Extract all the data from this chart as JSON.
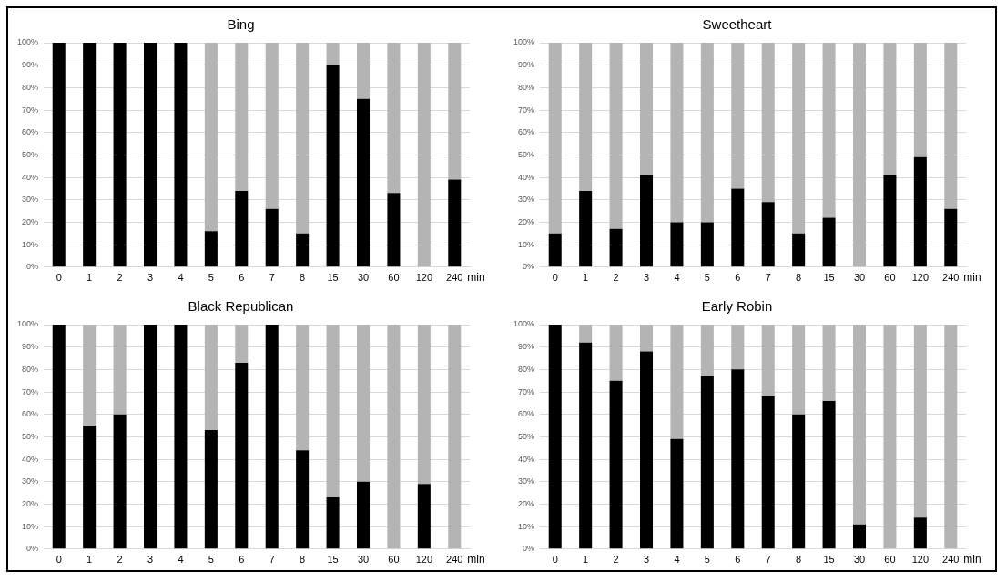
{
  "chart_data": [
    {
      "type": "bar",
      "title": "Bing",
      "xlabel": "min",
      "stacked": true,
      "grid": "y",
      "legend": false,
      "categories": [
        "0",
        "1",
        "2",
        "3",
        "4",
        "5",
        "6",
        "7",
        "8",
        "15",
        "30",
        "60",
        "120",
        "240"
      ],
      "ylim": [
        0,
        100
      ],
      "yticks": [
        {
          "value": 0,
          "label": "0%"
        },
        {
          "value": 10,
          "label": "10%"
        },
        {
          "value": 20,
          "label": "20%"
        },
        {
          "value": 30,
          "label": "30%"
        },
        {
          "value": 40,
          "label": "40%"
        },
        {
          "value": 50,
          "label": "50%"
        },
        {
          "value": 60,
          "label": "60%"
        },
        {
          "value": 70,
          "label": "70%"
        },
        {
          "value": 80,
          "label": "80%"
        },
        {
          "value": 90,
          "label": "90%"
        },
        {
          "value": 100,
          "label": "100%"
        }
      ],
      "series": [
        {
          "color": "#000000",
          "values": [
            100,
            100,
            100,
            100,
            100,
            16,
            34,
            26,
            15,
            90,
            75,
            33,
            0,
            39
          ]
        },
        {
          "color": "#b4b4b4",
          "values": [
            0,
            0,
            0,
            0,
            0,
            84,
            66,
            74,
            85,
            10,
            25,
            67,
            100,
            61
          ]
        }
      ]
    },
    {
      "type": "bar",
      "title": "Sweetheart",
      "xlabel": "min",
      "stacked": true,
      "grid": "y",
      "legend": false,
      "categories": [
        "0",
        "1",
        "2",
        "3",
        "4",
        "5",
        "6",
        "7",
        "8",
        "15",
        "30",
        "60",
        "120",
        "240"
      ],
      "ylim": [
        0,
        100
      ],
      "yticks": [
        {
          "value": 0,
          "label": "0%"
        },
        {
          "value": 10,
          "label": "10%"
        },
        {
          "value": 20,
          "label": "20%"
        },
        {
          "value": 30,
          "label": "30%"
        },
        {
          "value": 40,
          "label": "40%"
        },
        {
          "value": 50,
          "label": "50%"
        },
        {
          "value": 60,
          "label": "60%"
        },
        {
          "value": 70,
          "label": "70%"
        },
        {
          "value": 80,
          "label": "80%"
        },
        {
          "value": 90,
          "label": "90%"
        },
        {
          "value": 100,
          "label": "100%"
        }
      ],
      "series": [
        {
          "color": "#000000",
          "values": [
            15,
            34,
            17,
            41,
            20,
            20,
            35,
            29,
            15,
            22,
            0,
            41,
            49,
            26
          ]
        },
        {
          "color": "#b4b4b4",
          "values": [
            85,
            66,
            83,
            59,
            80,
            80,
            65,
            71,
            85,
            78,
            100,
            59,
            51,
            74
          ]
        }
      ]
    },
    {
      "type": "bar",
      "title": "Black Republican",
      "xlabel": "min",
      "stacked": true,
      "grid": "y",
      "legend": false,
      "categories": [
        "0",
        "1",
        "2",
        "3",
        "4",
        "5",
        "6",
        "7",
        "8",
        "15",
        "30",
        "60",
        "120",
        "240"
      ],
      "ylim": [
        0,
        100
      ],
      "yticks": [
        {
          "value": 0,
          "label": "0%"
        },
        {
          "value": 10,
          "label": "10%"
        },
        {
          "value": 20,
          "label": "20%"
        },
        {
          "value": 30,
          "label": "30%"
        },
        {
          "value": 40,
          "label": "40%"
        },
        {
          "value": 50,
          "label": "50%"
        },
        {
          "value": 60,
          "label": "60%"
        },
        {
          "value": 70,
          "label": "70%"
        },
        {
          "value": 80,
          "label": "80%"
        },
        {
          "value": 90,
          "label": "90%"
        },
        {
          "value": 100,
          "label": "100%"
        }
      ],
      "series": [
        {
          "color": "#000000",
          "values": [
            100,
            55,
            60,
            100,
            100,
            53,
            83,
            100,
            44,
            23,
            30,
            0,
            29,
            0
          ]
        },
        {
          "color": "#b4b4b4",
          "values": [
            0,
            45,
            40,
            0,
            0,
            47,
            17,
            0,
            56,
            77,
            70,
            100,
            71,
            100
          ]
        }
      ]
    },
    {
      "type": "bar",
      "title": "Early Robin",
      "xlabel": "min",
      "stacked": true,
      "grid": "y",
      "legend": false,
      "categories": [
        "0",
        "1",
        "2",
        "3",
        "4",
        "5",
        "6",
        "7",
        "8",
        "15",
        "30",
        "60",
        "120",
        "240"
      ],
      "ylim": [
        0,
        100
      ],
      "yticks": [
        {
          "value": 0,
          "label": "0%"
        },
        {
          "value": 10,
          "label": "10%"
        },
        {
          "value": 20,
          "label": "20%"
        },
        {
          "value": 30,
          "label": "30%"
        },
        {
          "value": 40,
          "label": "40%"
        },
        {
          "value": 50,
          "label": "50%"
        },
        {
          "value": 60,
          "label": "60%"
        },
        {
          "value": 70,
          "label": "70%"
        },
        {
          "value": 80,
          "label": "80%"
        },
        {
          "value": 90,
          "label": "90%"
        },
        {
          "value": 100,
          "label": "100%"
        }
      ],
      "series": [
        {
          "color": "#000000",
          "values": [
            100,
            92,
            75,
            88,
            49,
            77,
            80,
            68,
            60,
            66,
            11,
            0,
            14,
            0
          ]
        },
        {
          "color": "#b4b4b4",
          "values": [
            0,
            8,
            25,
            12,
            51,
            23,
            20,
            32,
            40,
            34,
            89,
            100,
            86,
            100
          ]
        }
      ]
    }
  ]
}
